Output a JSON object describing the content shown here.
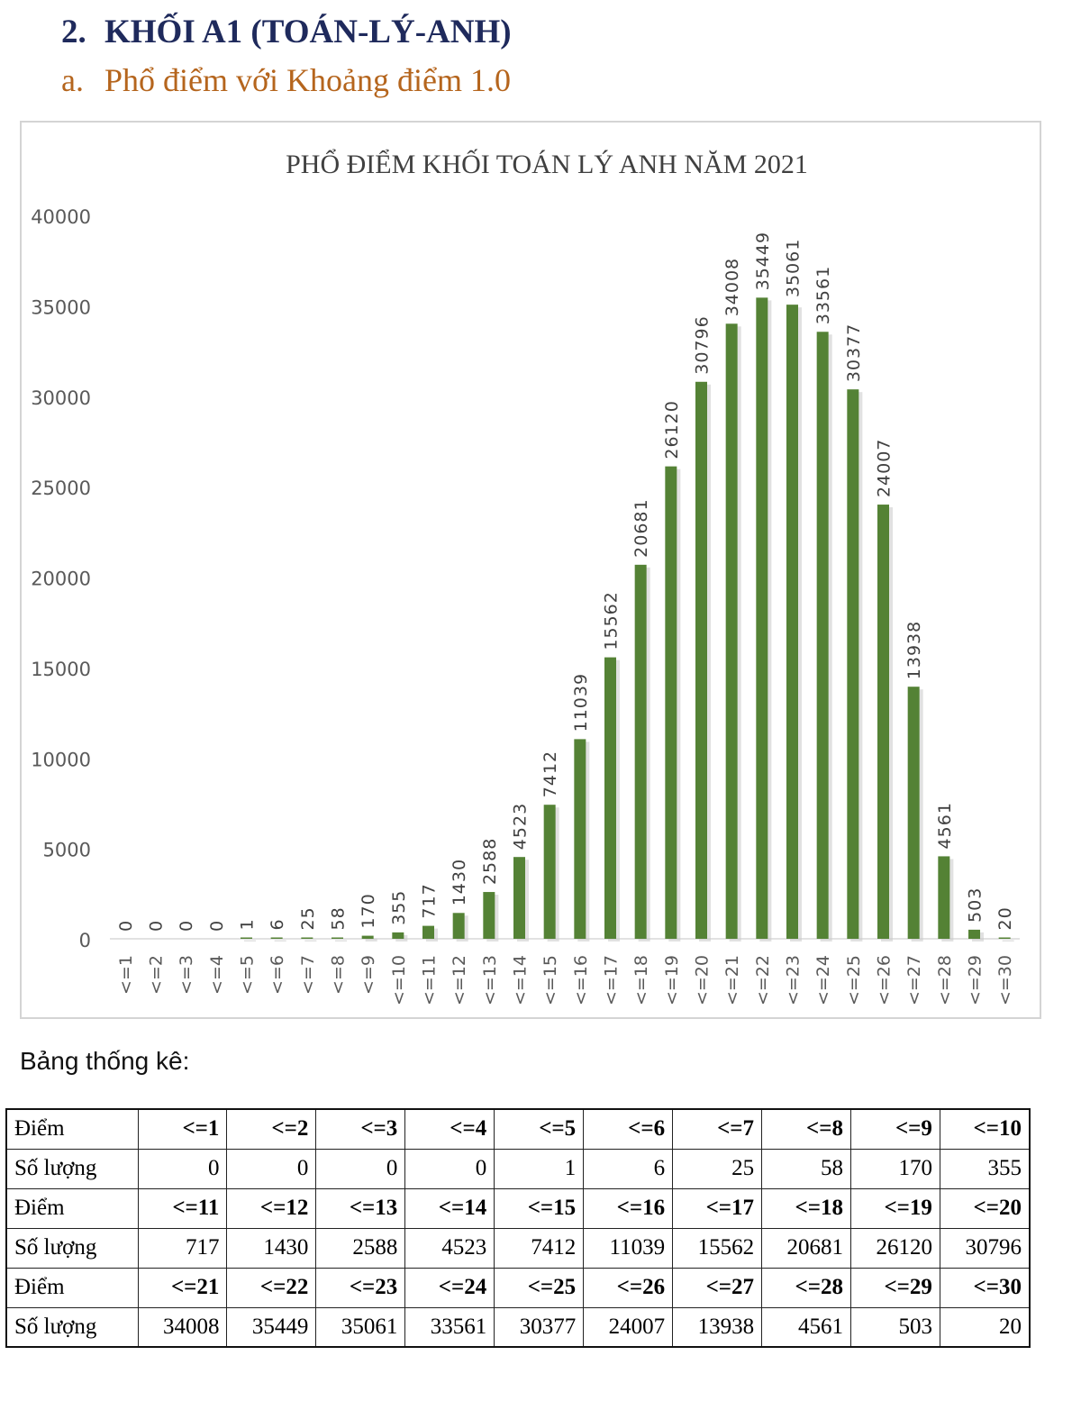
{
  "heading": {
    "number": "2.",
    "text": "KHỐI A1 (TOÁN-LÝ-ANH)"
  },
  "subheading": {
    "number": "a.",
    "text": "Phổ điểm với Khoảng điểm 1.0"
  },
  "chart_data": {
    "type": "bar",
    "title": "PHỔ ĐIỂM KHỐI TOÁN LÝ ANH NĂM 2021",
    "xlabel": "",
    "ylabel": "",
    "categories": [
      "<=1",
      "<=2",
      "<=3",
      "<=4",
      "<=5",
      "<=6",
      "<=7",
      "<=8",
      "<=9",
      "<=10",
      "<=11",
      "<=12",
      "<=13",
      "<=14",
      "<=15",
      "<=16",
      "<=17",
      "<=18",
      "<=19",
      "<=20",
      "<=21",
      "<=22",
      "<=23",
      "<=24",
      "<=25",
      "<=26",
      "<=27",
      "<=28",
      "<=29",
      "<=30"
    ],
    "values": [
      0,
      0,
      0,
      0,
      1,
      6,
      25,
      58,
      170,
      355,
      717,
      1430,
      2588,
      4523,
      7412,
      11039,
      15562,
      20681,
      26120,
      30796,
      34008,
      35449,
      35061,
      33561,
      30377,
      24007,
      13938,
      4561,
      503,
      20
    ],
    "ylim": [
      0,
      40000
    ],
    "yticks": [
      0,
      5000,
      10000,
      15000,
      20000,
      25000,
      30000,
      35000,
      40000
    ],
    "grid": false,
    "legend": "none",
    "bar_color": "#548235"
  },
  "stats": {
    "label": "Bảng thống kê:",
    "rows": [
      {
        "kind": "score",
        "label": "Điểm",
        "cells": [
          "<=1",
          "<=2",
          "<=3",
          "<=4",
          "<=5",
          "<=6",
          "<=7",
          "<=8",
          "<=9",
          "<=10"
        ]
      },
      {
        "kind": "count",
        "label": "Số lượng",
        "cells": [
          "0",
          "0",
          "0",
          "0",
          "1",
          "6",
          "25",
          "58",
          "170",
          "355"
        ]
      },
      {
        "kind": "score",
        "label": "Điểm",
        "cells": [
          "<=11",
          "<=12",
          "<=13",
          "<=14",
          "<=15",
          "<=16",
          "<=17",
          "<=18",
          "<=19",
          "<=20"
        ]
      },
      {
        "kind": "count",
        "label": "Số lượng",
        "cells": [
          "717",
          "1430",
          "2588",
          "4523",
          "7412",
          "11039",
          "15562",
          "20681",
          "26120",
          "30796"
        ]
      },
      {
        "kind": "score",
        "label": "Điểm",
        "cells": [
          "<=21",
          "<=22",
          "<=23",
          "<=24",
          "<=25",
          "<=26",
          "<=27",
          "<=28",
          "<=29",
          "<=30"
        ]
      },
      {
        "kind": "count",
        "label": "Số lượng",
        "cells": [
          "34008",
          "35449",
          "35061",
          "33561",
          "30377",
          "24007",
          "13938",
          "4561",
          "503",
          "20"
        ]
      }
    ]
  }
}
